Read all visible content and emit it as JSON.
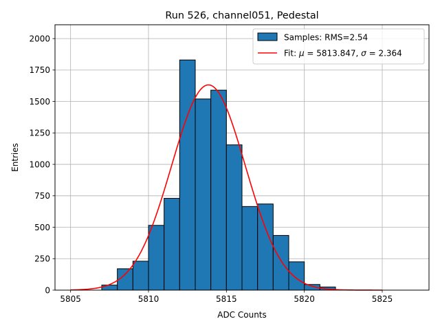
{
  "chart_data": {
    "type": "bar",
    "title": "Run 526, channel051, Pedestal",
    "xlabel": "ADC Counts",
    "ylabel": "Entries",
    "xlim": [
      5804,
      5828
    ],
    "ylim": [
      0,
      2110
    ],
    "x_ticks": [
      5805,
      5810,
      5815,
      5820,
      5825
    ],
    "y_ticks": [
      0,
      250,
      500,
      750,
      1000,
      1250,
      1500,
      1750,
      2000
    ],
    "grid": true,
    "legend_position": "top-right",
    "histogram": {
      "name": "Samples: RMS=2.54",
      "color": "#1f77b4",
      "bin_edges": [
        5807,
        5808,
        5809,
        5810,
        5811,
        5812,
        5813,
        5814,
        5815,
        5816,
        5817,
        5818,
        5819,
        5820,
        5821,
        5822
      ],
      "counts": [
        40,
        170,
        230,
        515,
        730,
        1830,
        1520,
        1590,
        1155,
        665,
        685,
        435,
        225,
        45,
        25
      ]
    },
    "fit": {
      "name_prefix": "Fit: ",
      "mu_label": "μ",
      "mu_text": " = 5813.847, ",
      "sigma_label": "σ",
      "sigma_text": " = 2.364",
      "color": "#ff0000",
      "mu": 5813.847,
      "sigma": 2.364,
      "amplitude": 1632,
      "x_range": [
        5805,
        5825
      ]
    }
  }
}
